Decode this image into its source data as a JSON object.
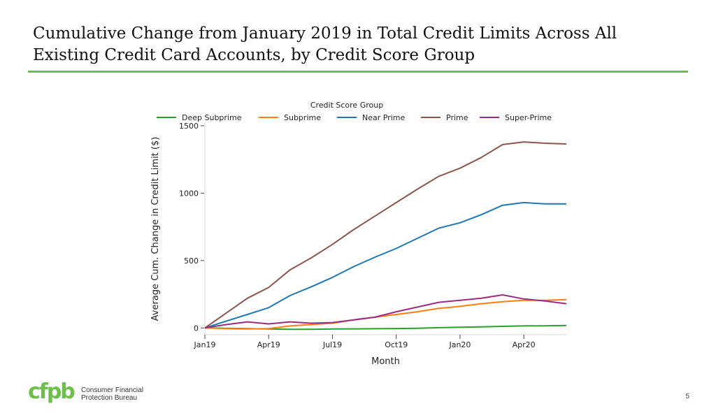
{
  "slide": {
    "title_line1": "Cumulative Change from January 2019 in Total Credit Limits Across All",
    "title_line2": "Existing Credit Card Accounts, by Credit Score Group",
    "page_number": "5",
    "accent_color": "#6cc04a"
  },
  "footer": {
    "logo_mark": "cfpb",
    "logo_line1": "Consumer Financial",
    "logo_line2": "Protection Bureau"
  },
  "chart_data": {
    "type": "line",
    "legend_title": "Credit Score Group",
    "legend_position": "top",
    "xlabel": "Month",
    "ylabel": "Average Cum. Change in Credit Limit ($)",
    "x": [
      "2019-01",
      "2019-02",
      "2019-03",
      "2019-04",
      "2019-05",
      "2019-06",
      "2019-07",
      "2019-08",
      "2019-09",
      "2019-10",
      "2019-11",
      "2019-12",
      "2020-01",
      "2020-02",
      "2020-03",
      "2020-04",
      "2020-05",
      "2020-06"
    ],
    "x_ticks": [
      {
        "month": "2019-01",
        "label": "Jan19"
      },
      {
        "month": "2019-04",
        "label": "Apr19"
      },
      {
        "month": "2019-07",
        "label": "Jul19"
      },
      {
        "month": "2019-10",
        "label": "Oct19"
      },
      {
        "month": "2020-01",
        "label": "Jan20"
      },
      {
        "month": "2020-04",
        "label": "Apr20"
      }
    ],
    "y_ticks": [
      0,
      500,
      1000,
      1500
    ],
    "ylim": [
      -40,
      1510
    ],
    "grid": false,
    "series": [
      {
        "name": "Deep Subprime",
        "color": "#2ca02c",
        "values": [
          0,
          -2,
          -5,
          -8,
          -10,
          -10,
          -8,
          -7,
          -6,
          -4,
          -2,
          2,
          5,
          8,
          12,
          15,
          16,
          18
        ]
      },
      {
        "name": "Subprime",
        "color": "#ff7f0e",
        "values": [
          0,
          -5,
          -8,
          -5,
          15,
          25,
          35,
          60,
          80,
          100,
          120,
          145,
          160,
          180,
          195,
          205,
          205,
          210
        ]
      },
      {
        "name": "Near Prime",
        "color": "#1f77b4",
        "values": [
          0,
          50,
          100,
          150,
          240,
          305,
          375,
          455,
          525,
          590,
          665,
          740,
          780,
          840,
          910,
          930,
          920,
          920
        ]
      },
      {
        "name": "Prime",
        "color": "#8c564b",
        "values": [
          0,
          110,
          220,
          300,
          430,
          520,
          620,
          730,
          830,
          930,
          1030,
          1125,
          1185,
          1265,
          1360,
          1380,
          1370,
          1365
        ]
      },
      {
        "name": "Super-Prime",
        "color": "#9b2c84",
        "values": [
          0,
          25,
          45,
          30,
          45,
          35,
          40,
          60,
          80,
          120,
          155,
          190,
          205,
          220,
          245,
          215,
          200,
          180
        ]
      }
    ]
  }
}
